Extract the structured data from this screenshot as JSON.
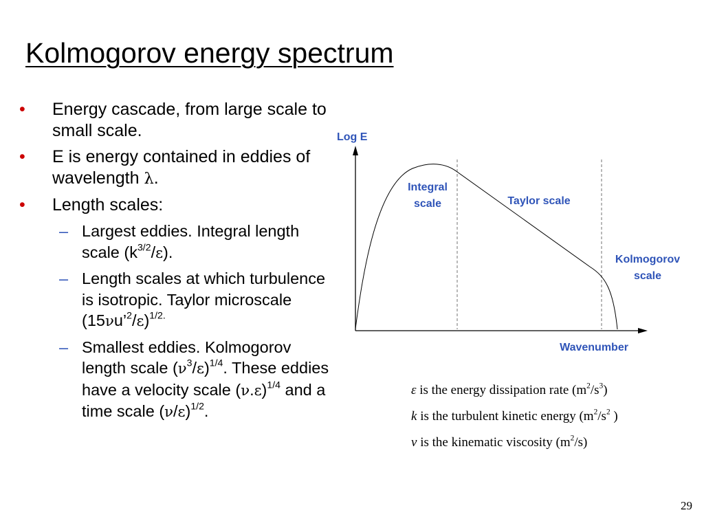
{
  "slide": {
    "title": "Kolmogorov energy spectrum",
    "page_number": "29"
  },
  "bullets": {
    "b1": "Energy cascade, from large scale to small scale.",
    "b2_a": "E is energy contained in eddies of wavelength ",
    "b2_lambda": "λ",
    "b2_b": ".",
    "b3": "Length scales:",
    "s1_a": "Largest eddies. Integral length scale (k",
    "s1_sup": "3/2",
    "s1_b": "/",
    "s1_eps": "ε",
    "s1_c": ").",
    "s2_a": "Length scales at which turbulence is isotropic. Taylor microscale (15",
    "s2_nu": "ν",
    "s2_b": "u’",
    "s2_sup1": "2",
    "s2_c": "/",
    "s2_eps": "ε",
    "s2_d": ")",
    "s2_sup2": "1/2.",
    "s3_a": "Smallest eddies. Kolmogorov length scale (",
    "s3_nu": "ν",
    "s3_sup1": "3",
    "s3_b": "/",
    "s3_eps": "ε",
    "s3_c": ")",
    "s3_sup2": "1/4",
    "s3_d": ". These eddies have a velocity scale (",
    "s3_nu2": "ν",
    "s3_e": ".",
    "s3_eps2": "ε",
    "s3_f": ")",
    "s3_sup3": "1/4",
    "s3_g": " and a time scale (",
    "s3_nu3": "ν",
    "s3_h": "/",
    "s3_eps3": "ε",
    "s3_i": ")",
    "s3_sup4": "1/2",
    "s3_j": "."
  },
  "diagram": {
    "y_label": "Log E",
    "x_label": "Wavenumber",
    "integral_label_1": "Integral",
    "integral_label_2": "scale",
    "taylor_label": "Taylor scale",
    "kolmogorov_label_1": "Kolmogorov",
    "kolmogorov_label_2": "scale",
    "label_color": "#2f54b8"
  },
  "definitions": {
    "d1_sym": "ε",
    "d1_text": " is the energy dissipation rate (m",
    "d1_sup1": "2",
    "d1_mid": "/s",
    "d1_sup2": "3",
    "d1_end": ")",
    "d2_sym": "k",
    "d2_text": " is the turbulent kinetic energy (m",
    "d2_sup1": "2",
    "d2_mid": "/s",
    "d2_sup2": "2",
    "d2_end": " )",
    "d3_sym": "ν",
    "d3_text": " is the kinematic viscosity (m",
    "d3_sup1": "2",
    "d3_end": "/s)"
  },
  "colors": {
    "bullet_red": "#cc0000",
    "dash_blue": "#2f54b8"
  }
}
